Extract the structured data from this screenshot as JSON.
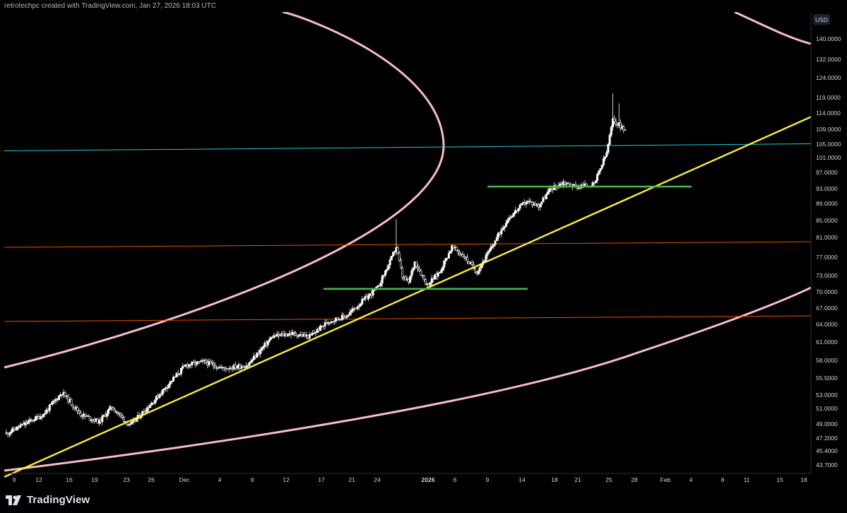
{
  "header": {
    "attribution": "retrotechpc created with TradingView.com, Jan 27, 2026 18:03 UTC"
  },
  "footer": {
    "brand": "TradingView"
  },
  "colors": {
    "background": "#000000",
    "candle": "#ffffff",
    "trendline": "#ffeb3b",
    "support": "#4caf50",
    "cyan_line": "#26c6da",
    "orange_line": "#e65100",
    "arc": "#f8bbd0"
  },
  "price_axis": {
    "currency": "USD",
    "labels": [
      "140.0000",
      "132.0000",
      "124.0000",
      "119.0000",
      "114.0000",
      "109.0000",
      "105.0000",
      "101.0000",
      "97.0000",
      "93.0000",
      "89.0000",
      "85.0000",
      "81.0000",
      "77.0000",
      "73.0000",
      "70.0000",
      "67.0000",
      "64.0000",
      "61.0000",
      "58.0000",
      "55.5000",
      "53.0000",
      "51.0000",
      "49.0000",
      "47.2000",
      "45.4000",
      "43.7000"
    ]
  },
  "time_axis": {
    "labels": [
      "9",
      "12",
      "16",
      "19",
      "23",
      "26",
      "Dec",
      "4",
      "9",
      "12",
      "17",
      "21",
      "24",
      "2026",
      "6",
      "9",
      "14",
      "18",
      "21",
      "25",
      "28",
      "Feb",
      "4",
      "8",
      "11",
      "15",
      "18"
    ]
  },
  "chart_data": {
    "type": "candlestick",
    "y_scale": "log",
    "ylim": [
      43.7,
      146
    ],
    "price_path": [
      {
        "t": 0,
        "p": 48.5
      },
      {
        "t": 12,
        "p": 51
      },
      {
        "t": 18,
        "p": 54
      },
      {
        "t": 24,
        "p": 51
      },
      {
        "t": 30,
        "p": 50
      },
      {
        "t": 34,
        "p": 52
      },
      {
        "t": 40,
        "p": 49.5
      },
      {
        "t": 48,
        "p": 53
      },
      {
        "t": 58,
        "p": 58
      },
      {
        "t": 64,
        "p": 58.5
      },
      {
        "t": 70,
        "p": 57.5
      },
      {
        "t": 78,
        "p": 58
      },
      {
        "t": 86,
        "p": 62.5
      },
      {
        "t": 92,
        "p": 63
      },
      {
        "t": 98,
        "p": 62.5
      },
      {
        "t": 104,
        "p": 65
      },
      {
        "t": 110,
        "p": 66
      },
      {
        "t": 116,
        "p": 69
      },
      {
        "t": 120,
        "p": 71
      },
      {
        "t": 124,
        "p": 76
      },
      {
        "t": 126,
        "p": 79
      },
      {
        "t": 128,
        "p": 73
      },
      {
        "t": 130,
        "p": 72
      },
      {
        "t": 132,
        "p": 76
      },
      {
        "t": 136,
        "p": 71.5
      },
      {
        "t": 140,
        "p": 74
      },
      {
        "t": 144,
        "p": 79
      },
      {
        "t": 148,
        "p": 77
      },
      {
        "t": 152,
        "p": 74
      },
      {
        "t": 156,
        "p": 78
      },
      {
        "t": 162,
        "p": 85
      },
      {
        "t": 168,
        "p": 89
      },
      {
        "t": 172,
        "p": 88
      },
      {
        "t": 176,
        "p": 92
      },
      {
        "t": 180,
        "p": 93.5
      },
      {
        "t": 184,
        "p": 92.5
      },
      {
        "t": 190,
        "p": 93
      },
      {
        "t": 194,
        "p": 101
      },
      {
        "t": 196,
        "p": 110
      },
      {
        "t": 199,
        "p": 108
      },
      {
        "t": 200,
        "p": 107
      }
    ],
    "horizontal_lines": [
      {
        "name": "cyan-level",
        "price": 102.5
      },
      {
        "name": "orange-level-high",
        "price": 79.5
      },
      {
        "name": "orange-level-low",
        "price": 65.5
      }
    ],
    "support_segments": [
      {
        "name": "support-lower",
        "price": 70.8
      },
      {
        "name": "support-upper",
        "price": 92.5
      }
    ],
    "trendline": {
      "from_price": 43.3,
      "to_price": 111
    }
  }
}
